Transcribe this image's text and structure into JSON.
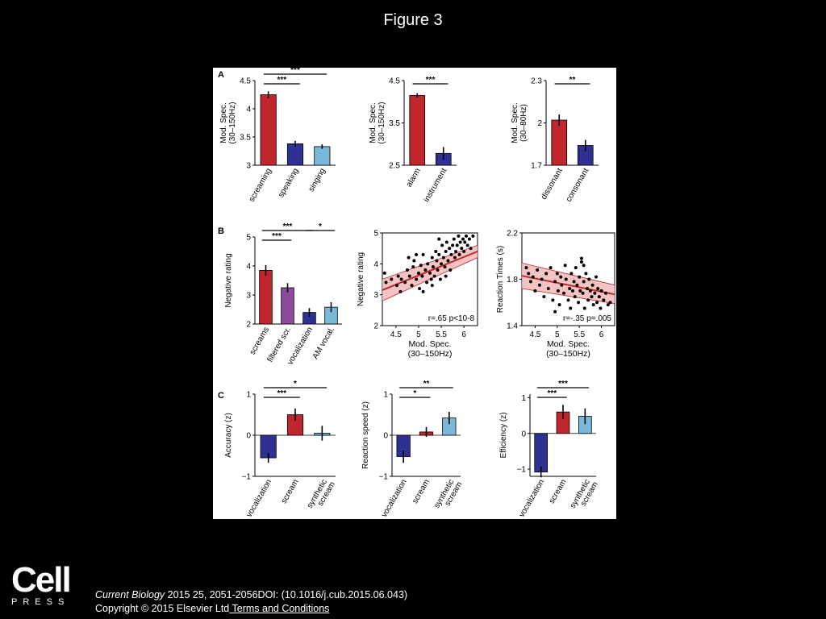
{
  "slide": {
    "title": "Figure 3",
    "logo_text": "Cell",
    "logo_subtext": "PRESS",
    "citation_journal": "Current Biology",
    "citation_rest": " 2015 25, 2051-2056DOI: (10.1016/j.cub.2015.06.043)",
    "copyright": "Copyright © 2015 Elsevier Ltd",
    "terms_link": " Terms and Conditions"
  },
  "colors": {
    "red": "#c0272d",
    "dark_blue": "#2e3192",
    "light_blue": "#7ab8d9",
    "purple": "#8e4a9b",
    "fit_line": "#c0272d",
    "ci_band": "#f2b8b8"
  },
  "chart_data": [
    {
      "panel": "A",
      "type": "bar",
      "ylabel": "Mod. Spec.",
      "ylabel2": "(30–150Hz)",
      "ylim": [
        3,
        4.5
      ],
      "yticks": [
        3,
        3.5,
        4,
        4.5
      ],
      "yticklabels": [
        "3",
        "3.5",
        "4",
        "4.5"
      ],
      "categories": [
        "screaming",
        "speaking",
        "singing"
      ],
      "values": [
        4.25,
        3.38,
        3.33
      ],
      "errors": [
        0.06,
        0.05,
        0.04
      ],
      "bar_colors": [
        "red",
        "dark_blue",
        "light_blue"
      ],
      "significance": [
        {
          "from": 0,
          "to": 1,
          "label": "***"
        },
        {
          "from": 0,
          "to": 2,
          "label": "***"
        }
      ]
    },
    {
      "type": "bar",
      "ylabel": "Mod. Spec.",
      "ylabel2": "(30–150Hz)",
      "ylim": [
        2.5,
        4.5
      ],
      "yticks": [
        2.5,
        3.5,
        4.5
      ],
      "yticklabels": [
        "2.5",
        "3.5",
        "4.5"
      ],
      "categories": [
        "alarm",
        "instrument"
      ],
      "values": [
        4.15,
        2.78
      ],
      "errors": [
        0.05,
        0.15
      ],
      "bar_colors": [
        "red",
        "dark_blue"
      ],
      "significance": [
        {
          "from": 0,
          "to": 1,
          "label": "***"
        }
      ]
    },
    {
      "type": "bar",
      "ylabel": "Mod. Spec.",
      "ylabel2": "(30–80Hz)",
      "ylim": [
        1.7,
        2.3
      ],
      "yticks": [
        1.7,
        2,
        2.3
      ],
      "yticklabels": [
        "1.7",
        "2",
        "2.3"
      ],
      "categories": [
        "dissonant",
        "consonant"
      ],
      "values": [
        2.02,
        1.84
      ],
      "errors": [
        0.04,
        0.04
      ],
      "bar_colors": [
        "red",
        "dark_blue"
      ],
      "significance": [
        {
          "from": 0,
          "to": 1,
          "label": "**"
        }
      ]
    },
    {
      "panel": "B",
      "type": "bar",
      "ylabel": "Negative rating",
      "ylim": [
        2,
        5
      ],
      "yticks": [
        2,
        3,
        4,
        5
      ],
      "yticklabels": [
        "2",
        "3",
        "4",
        "5"
      ],
      "categories": [
        "screams",
        "filtered scr.",
        "vocalization",
        "AM vocal."
      ],
      "values": [
        3.85,
        3.25,
        2.4,
        2.58
      ],
      "errors": [
        0.18,
        0.16,
        0.15,
        0.17
      ],
      "bar_colors": [
        "red",
        "purple",
        "dark_blue",
        "light_blue"
      ],
      "significance": [
        {
          "from": 0,
          "to": 1,
          "label": "***"
        },
        {
          "from": 0,
          "to": 2,
          "label": "***"
        },
        {
          "from": 2,
          "to": 3,
          "label": "*"
        }
      ]
    },
    {
      "type": "scatter",
      "ylabel": "Negative rating",
      "xlabel": "Mod. Spec.",
      "xlabel2": "(30–150Hz)",
      "xlim": [
        4.2,
        6.3
      ],
      "ylim": [
        2,
        5
      ],
      "xticks": [
        4.5,
        5,
        5.5,
        6
      ],
      "xticklabels": [
        "4.5",
        "5",
        "5.5",
        "6"
      ],
      "yticks": [
        2,
        3,
        4,
        5
      ],
      "yticklabels": [
        "2",
        "3",
        "4",
        "5"
      ],
      "fit": {
        "x": [
          4.2,
          6.3
        ],
        "y": [
          3.15,
          4.4
        ]
      },
      "ci": {
        "upper": [
          3.5,
          4.6
        ],
        "lower": [
          2.8,
          4.2
        ]
      },
      "annotation": "r=.65 p<10-8",
      "points": [
        [
          4.25,
          3.7
        ],
        [
          4.28,
          3.4
        ],
        [
          4.4,
          3.5
        ],
        [
          4.52,
          3.3
        ],
        [
          4.55,
          3.6
        ],
        [
          4.6,
          3.1
        ],
        [
          4.62,
          3.5
        ],
        [
          4.7,
          3.4
        ],
        [
          4.75,
          3.8
        ],
        [
          4.78,
          4.2
        ],
        [
          4.8,
          3.6
        ],
        [
          4.85,
          3.3
        ],
        [
          4.88,
          3.9
        ],
        [
          4.9,
          4.1
        ],
        [
          4.95,
          3.5
        ],
        [
          5.0,
          3.7
        ],
        [
          5.02,
          3.2
        ],
        [
          5.05,
          3.95
        ],
        [
          5.08,
          3.6
        ],
        [
          5.1,
          4.3
        ],
        [
          5.15,
          3.8
        ],
        [
          5.18,
          3.4
        ],
        [
          5.2,
          4.0
        ],
        [
          5.25,
          3.7
        ],
        [
          5.28,
          3.5
        ],
        [
          5.3,
          4.2
        ],
        [
          5.32,
          3.9
        ],
        [
          5.35,
          3.6
        ],
        [
          5.38,
          4.4
        ],
        [
          5.4,
          4.1
        ],
        [
          5.42,
          3.8
        ],
        [
          5.45,
          4.3
        ],
        [
          5.48,
          3.5
        ],
        [
          5.5,
          4.0
        ],
        [
          5.52,
          4.6
        ],
        [
          5.55,
          4.2
        ],
        [
          5.58,
          3.9
        ],
        [
          5.6,
          4.4
        ],
        [
          5.62,
          4.7
        ],
        [
          5.65,
          4.1
        ],
        [
          5.68,
          4.5
        ],
        [
          5.7,
          3.8
        ],
        [
          5.72,
          4.3
        ],
        [
          5.75,
          4.6
        ],
        [
          5.78,
          4.8
        ],
        [
          5.8,
          4.2
        ],
        [
          5.82,
          4.4
        ],
        [
          5.85,
          4.6
        ],
        [
          5.88,
          4.9
        ],
        [
          5.9,
          4.3
        ],
        [
          5.92,
          4.7
        ],
        [
          5.95,
          4.5
        ],
        [
          5.98,
          4.8
        ],
        [
          6.0,
          4.4
        ],
        [
          6.02,
          4.7
        ],
        [
          6.05,
          4.9
        ],
        [
          6.08,
          4.6
        ],
        [
          6.12,
          4.8
        ],
        [
          6.15,
          4.5
        ],
        [
          6.2,
          4.9
        ],
        [
          5.3,
          3.3
        ],
        [
          5.1,
          3.1
        ],
        [
          4.95,
          4.3
        ],
        [
          5.6,
          3.6
        ],
        [
          5.45,
          4.8
        ]
      ]
    },
    {
      "type": "scatter",
      "ylabel": "Reaction Times (s)",
      "xlabel": "Mod. Spec.",
      "xlabel2": "(30–150Hz)",
      "xlim": [
        4.2,
        6.3
      ],
      "ylim": [
        1.4,
        2.2
      ],
      "xticks": [
        4.5,
        5,
        5.5,
        6
      ],
      "xticklabels": [
        "4.5",
        "5",
        "5.5",
        "6"
      ],
      "yticks": [
        1.4,
        1.8,
        2.2
      ],
      "yticklabels": [
        "1.4",
        "1.8",
        "2.2"
      ],
      "fit": {
        "x": [
          4.2,
          6.3
        ],
        "y": [
          1.83,
          1.67
        ]
      },
      "ci": {
        "upper": [
          1.94,
          1.75
        ],
        "lower": [
          1.72,
          1.59
        ]
      },
      "annotation": "r=-.35 p=.005",
      "points": [
        [
          4.3,
          1.9
        ],
        [
          4.35,
          1.85
        ],
        [
          4.4,
          1.78
        ],
        [
          4.45,
          1.82
        ],
        [
          4.5,
          1.7
        ],
        [
          4.55,
          1.88
        ],
        [
          4.6,
          1.75
        ],
        [
          4.65,
          1.8
        ],
        [
          4.7,
          1.65
        ],
        [
          4.75,
          1.85
        ],
        [
          4.8,
          1.72
        ],
        [
          4.85,
          1.9
        ],
        [
          4.9,
          1.62
        ],
        [
          4.95,
          1.78
        ],
        [
          5.0,
          1.85
        ],
        [
          5.02,
          1.7
        ],
        [
          5.05,
          1.58
        ],
        [
          5.08,
          1.82
        ],
        [
          5.1,
          1.75
        ],
        [
          5.15,
          1.68
        ],
        [
          5.18,
          1.92
        ],
        [
          5.2,
          1.8
        ],
        [
          5.25,
          1.62
        ],
        [
          5.28,
          1.72
        ],
        [
          5.3,
          1.55
        ],
        [
          5.32,
          1.85
        ],
        [
          5.35,
          1.7
        ],
        [
          5.38,
          1.78
        ],
        [
          5.4,
          1.65
        ],
        [
          5.42,
          1.9
        ],
        [
          5.45,
          1.75
        ],
        [
          5.48,
          1.6
        ],
        [
          5.5,
          1.82
        ],
        [
          5.52,
          1.7
        ],
        [
          5.55,
          1.95
        ],
        [
          5.58,
          1.68
        ],
        [
          5.6,
          1.78
        ],
        [
          5.62,
          1.55
        ],
        [
          5.65,
          1.85
        ],
        [
          5.68,
          1.72
        ],
        [
          5.7,
          1.62
        ],
        [
          5.72,
          1.8
        ],
        [
          5.75,
          1.7
        ],
        [
          5.78,
          1.65
        ],
        [
          5.8,
          1.75
        ],
        [
          5.82,
          1.58
        ],
        [
          5.85,
          1.68
        ],
        [
          5.88,
          1.82
        ],
        [
          5.9,
          1.6
        ],
        [
          5.92,
          1.72
        ],
        [
          5.95,
          1.65
        ],
        [
          5.98,
          1.55
        ],
        [
          6.0,
          1.7
        ],
        [
          6.05,
          1.62
        ],
        [
          6.1,
          1.68
        ],
        [
          6.15,
          1.58
        ],
        [
          6.2,
          1.6
        ],
        [
          5.55,
          1.98
        ],
        [
          5.6,
          1.92
        ],
        [
          4.95,
          1.52
        ]
      ]
    },
    {
      "panel": "C",
      "type": "bar",
      "ylabel": "Accuracy (z)",
      "ylim": [
        -1,
        1
      ],
      "yticks": [
        -1,
        0,
        1
      ],
      "yticklabels": [
        "−1",
        "0",
        "1"
      ],
      "categories": [
        "vocalization",
        "scream",
        "synthetic scream"
      ],
      "values": [
        -0.55,
        0.5,
        0.05
      ],
      "errors": [
        0.12,
        0.15,
        0.18
      ],
      "bar_colors": [
        "dark_blue",
        "red",
        "light_blue"
      ],
      "significance": [
        {
          "from": 0,
          "to": 1,
          "label": "***"
        },
        {
          "from": 0,
          "to": 2,
          "label": "*"
        }
      ]
    },
    {
      "type": "bar",
      "ylabel": "Reaction speed (z)",
      "ylim": [
        -1,
        1
      ],
      "yticks": [
        -1,
        0,
        1
      ],
      "yticklabels": [
        "−1",
        "0",
        "1"
      ],
      "categories": [
        "vocalization",
        "scream",
        "synthetic scream"
      ],
      "values": [
        -0.52,
        0.08,
        0.42
      ],
      "errors": [
        0.15,
        0.12,
        0.15
      ],
      "bar_colors": [
        "dark_blue",
        "red",
        "light_blue"
      ],
      "significance": [
        {
          "from": 0,
          "to": 1,
          "label": "*"
        },
        {
          "from": 0,
          "to": 2,
          "label": "**"
        }
      ]
    },
    {
      "type": "bar",
      "ylabel": "Efficiency (z)",
      "ylim": [
        -1.2,
        1.1
      ],
      "yticks": [
        -1,
        0,
        1
      ],
      "yticklabels": [
        "−1",
        "0",
        "1"
      ],
      "categories": [
        "vocalization",
        "scream",
        "synthetic scream"
      ],
      "values": [
        -1.08,
        0.6,
        0.48
      ],
      "errors": [
        0.15,
        0.2,
        0.22
      ],
      "bar_colors": [
        "dark_blue",
        "red",
        "light_blue"
      ],
      "significance": [
        {
          "from": 0,
          "to": 1,
          "label": "***"
        },
        {
          "from": 0,
          "to": 2,
          "label": "***"
        }
      ]
    }
  ]
}
